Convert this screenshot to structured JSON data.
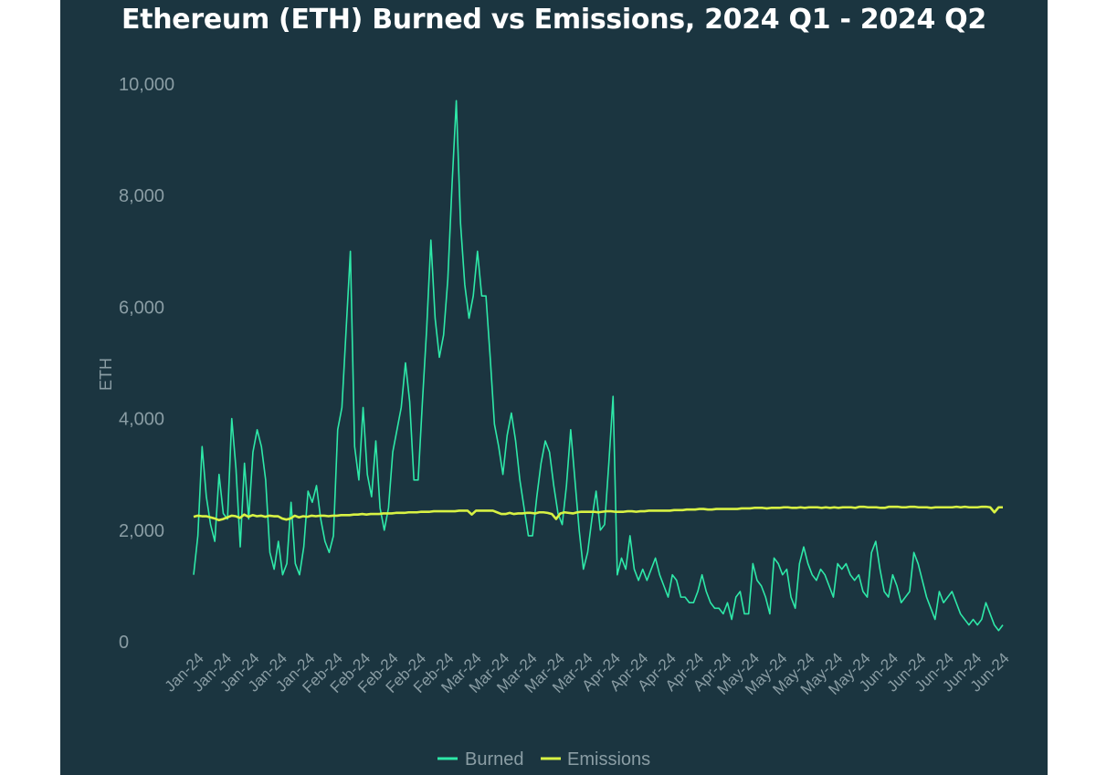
{
  "chart_data": {
    "type": "line",
    "title": "Ethereum (ETH) Burned vs Emissions, 2024 Q1 - 2024 Q2",
    "ylabel": "ETH",
    "xlabel": "",
    "ylim": [
      0,
      10000
    ],
    "y_ticks": [
      "0",
      "2,000",
      "4,000",
      "6,000",
      "8,000",
      "10,000"
    ],
    "y_tick_values": [
      0,
      2000,
      4000,
      6000,
      8000,
      10000
    ],
    "x_tick_labels": [
      "Jan-24",
      "Jan-24",
      "Jan-24",
      "Jan-24",
      "Jan-24",
      "Feb-24",
      "Feb-24",
      "Feb-24",
      "Feb-24",
      "Feb-24",
      "Mar-24",
      "Mar-24",
      "Mar-24",
      "Mar-24",
      "Mar-24",
      "Apr-24",
      "Apr-24",
      "Apr-24",
      "Apr-24",
      "Apr-24",
      "May-24",
      "May-24",
      "May-24",
      "May-24",
      "May-24",
      "Jun-24",
      "Jun-24",
      "Jun-24",
      "Jun-24",
      "Jun-24"
    ],
    "grid": false,
    "legend_position": "bottom",
    "series": [
      {
        "name": "Burned",
        "color": "#2ee8a8",
        "values": [
          1200,
          1900,
          3500,
          2600,
          2100,
          1800,
          3000,
          2300,
          2200,
          4000,
          3100,
          1700,
          3200,
          2200,
          3400,
          3800,
          3500,
          2900,
          1600,
          1300,
          1800,
          1200,
          1400,
          2500,
          1400,
          1200,
          1700,
          2700,
          2500,
          2800,
          2200,
          1800,
          1600,
          1900,
          3800,
          4200,
          5600,
          7000,
          3500,
          2900,
          4200,
          3000,
          2600,
          3600,
          2400,
          2000,
          2400,
          3400,
          3800,
          4200,
          5000,
          4300,
          2900,
          2900,
          4300,
          5600,
          7200,
          5800,
          5100,
          5500,
          6500,
          8200,
          9700,
          7500,
          6400,
          5800,
          6200,
          7000,
          6200,
          6200,
          5100,
          3900,
          3500,
          3000,
          3700,
          4100,
          3600,
          2900,
          2400,
          1900,
          1900,
          2600,
          3200,
          3600,
          3400,
          2800,
          2300,
          2100,
          2800,
          3800,
          2900,
          2000,
          1300,
          1600,
          2200,
          2700,
          2000,
          2100,
          3200,
          4400,
          1200,
          1500,
          1300,
          1900,
          1300,
          1100,
          1300,
          1100,
          1300,
          1500,
          1200,
          1000,
          800,
          1200,
          1100,
          800,
          800,
          700,
          700,
          900,
          1200,
          900,
          700,
          600,
          600,
          500,
          700,
          400,
          800,
          900,
          500,
          500,
          1400,
          1100,
          1000,
          800,
          500,
          1500,
          1400,
          1200,
          1300,
          800,
          600,
          1400,
          1700,
          1400,
          1200,
          1100,
          1300,
          1200,
          1000,
          800,
          1400,
          1300,
          1400,
          1200,
          1100,
          1200,
          900,
          800,
          1600,
          1800,
          1300,
          900,
          800,
          1200,
          1000,
          700,
          800,
          900,
          1600,
          1400,
          1100,
          800,
          600,
          400,
          900,
          700,
          800,
          900,
          700,
          500,
          400,
          300,
          400,
          300,
          400,
          700,
          500,
          300,
          200,
          300
        ]
      },
      {
        "name": "Emissions",
        "color": "#d8f244",
        "values": [
          2240,
          2260,
          2250,
          2250,
          2230,
          2210,
          2180,
          2200,
          2230,
          2260,
          2250,
          2220,
          2280,
          2240,
          2270,
          2250,
          2260,
          2240,
          2260,
          2250,
          2250,
          2210,
          2190,
          2210,
          2260,
          2230,
          2250,
          2240,
          2260,
          2250,
          2260,
          2260,
          2250,
          2260,
          2260,
          2270,
          2270,
          2270,
          2280,
          2280,
          2290,
          2280,
          2290,
          2290,
          2290,
          2300,
          2300,
          2300,
          2310,
          2310,
          2310,
          2320,
          2320,
          2320,
          2330,
          2330,
          2330,
          2340,
          2340,
          2340,
          2340,
          2340,
          2340,
          2350,
          2350,
          2350,
          2280,
          2350,
          2350,
          2350,
          2350,
          2350,
          2320,
          2290,
          2290,
          2310,
          2290,
          2300,
          2300,
          2310,
          2310,
          2300,
          2320,
          2320,
          2310,
          2290,
          2200,
          2300,
          2320,
          2310,
          2300,
          2320,
          2330,
          2330,
          2330,
          2330,
          2320,
          2330,
          2340,
          2340,
          2330,
          2330,
          2330,
          2340,
          2340,
          2330,
          2340,
          2340,
          2350,
          2350,
          2350,
          2350,
          2350,
          2350,
          2360,
          2360,
          2360,
          2370,
          2370,
          2370,
          2380,
          2380,
          2370,
          2370,
          2380,
          2380,
          2380,
          2380,
          2380,
          2380,
          2390,
          2390,
          2390,
          2400,
          2400,
          2400,
          2390,
          2400,
          2400,
          2400,
          2410,
          2410,
          2400,
          2400,
          2410,
          2400,
          2410,
          2410,
          2410,
          2400,
          2410,
          2400,
          2410,
          2400,
          2410,
          2410,
          2410,
          2400,
          2420,
          2420,
          2410,
          2410,
          2410,
          2400,
          2400,
          2420,
          2420,
          2420,
          2410,
          2410,
          2420,
          2420,
          2410,
          2410,
          2410,
          2400,
          2410,
          2410,
          2410,
          2410,
          2410,
          2420,
          2410,
          2420,
          2410,
          2410,
          2410,
          2420,
          2420,
          2410,
          2320,
          2410,
          2410
        ]
      }
    ]
  }
}
